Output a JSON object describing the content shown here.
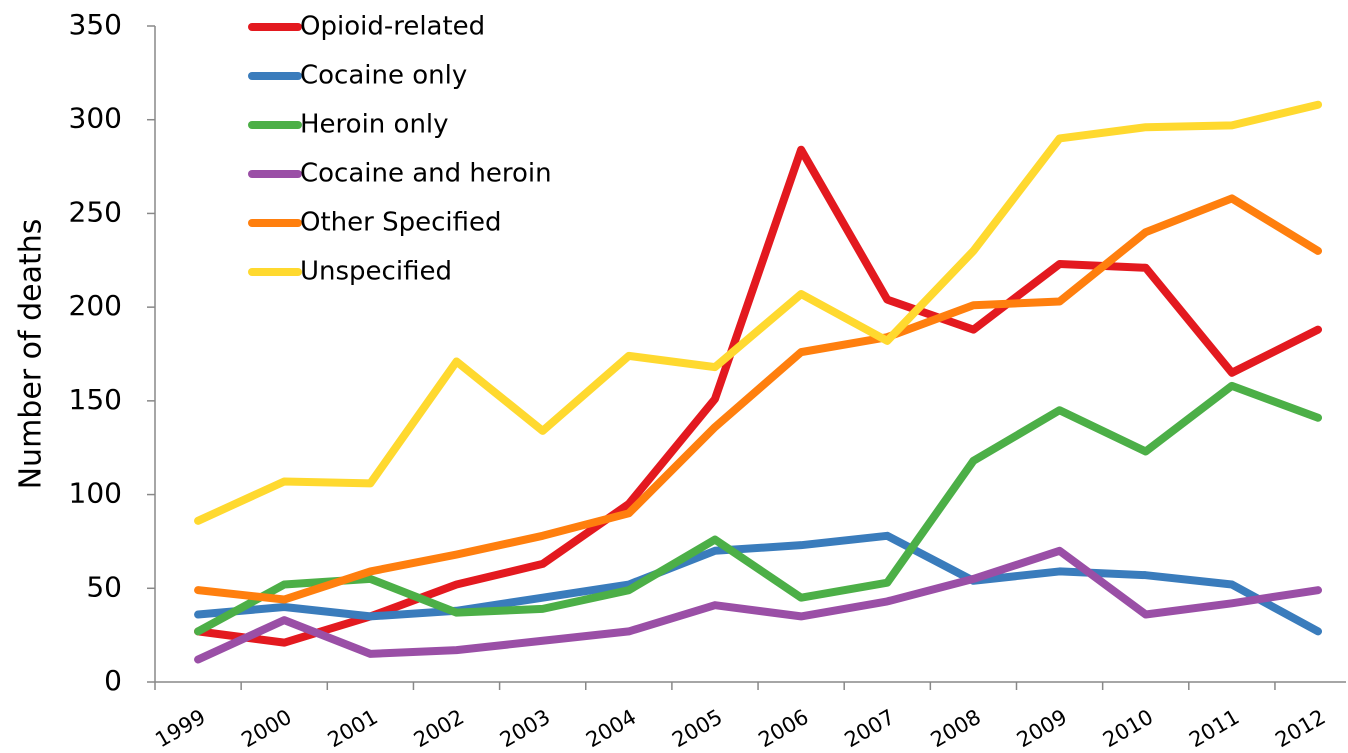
{
  "chart_data": {
    "type": "line",
    "y_label": "Number of deaths",
    "categories": [
      "1999",
      "2000",
      "2001",
      "2002",
      "2003",
      "2004",
      "2005",
      "2006",
      "2007",
      "2008",
      "2009",
      "2010",
      "2011",
      "2012"
    ],
    "series": [
      {
        "name": "Opioid-related",
        "color": "#e3191f",
        "values": [
          27,
          21,
          35,
          52,
          63,
          95,
          151,
          284,
          204,
          188,
          223,
          221,
          165,
          188
        ]
      },
      {
        "name": "Cocaine only",
        "color": "#3a7cbc",
        "values": [
          36,
          40,
          35,
          38,
          45,
          52,
          70,
          73,
          78,
          54,
          59,
          57,
          52,
          27
        ]
      },
      {
        "name": "Heroin only",
        "color": "#4caf47",
        "values": [
          27,
          52,
          55,
          37,
          39,
          49,
          76,
          45,
          53,
          118,
          145,
          123,
          158,
          141
        ]
      },
      {
        "name": "Cocaine and heroin",
        "color": "#9a4fa6",
        "values": [
          12,
          33,
          15,
          17,
          22,
          27,
          41,
          35,
          43,
          55,
          70,
          36,
          42,
          49
        ]
      },
      {
        "name": "Other Specified",
        "color": "#ff7f0e",
        "values": [
          49,
          44,
          59,
          68,
          78,
          90,
          136,
          176,
          184,
          201,
          203,
          240,
          258,
          230
        ]
      },
      {
        "name": "Unspecified",
        "color": "#ffd92f",
        "values": [
          86,
          107,
          106,
          171,
          134,
          174,
          168,
          207,
          182,
          230,
          290,
          296,
          297,
          308
        ]
      }
    ],
    "ylim": [
      0,
      350
    ],
    "yticks": [
      0,
      50,
      100,
      150,
      200,
      250,
      300,
      350
    ],
    "grid": false,
    "legend": "top-left"
  }
}
